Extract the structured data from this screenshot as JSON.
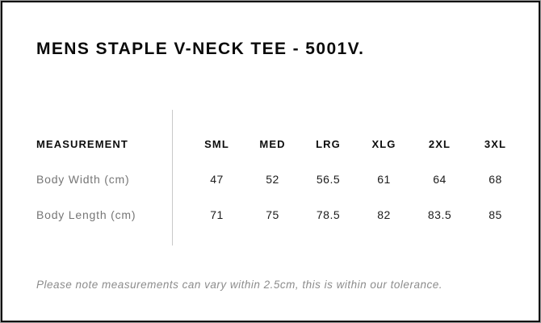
{
  "page": {
    "title": "MENS STAPLE V-NECK TEE - 5001V.",
    "note": "Please note measurements can vary within 2.5cm, this is within our tolerance."
  },
  "size_chart": {
    "header_label": "MEASUREMENT",
    "columns": [
      "SML",
      "MED",
      "LRG",
      "XLG",
      "2XL",
      "3XL"
    ],
    "rows": [
      {
        "label": "Body Width (cm)",
        "values": [
          "47",
          "52",
          "56.5",
          "61",
          "64",
          "68"
        ]
      },
      {
        "label": "Body Length (cm)",
        "values": [
          "71",
          "75",
          "78.5",
          "82",
          "83.5",
          "85"
        ]
      }
    ]
  },
  "colors": {
    "page_border": "#0a0a0a",
    "outer_edge": "#9b9b9b",
    "divider": "#c9c9c9",
    "title_text": "#0a0a0a",
    "header_text": "#0d0d0d",
    "row_label_text": "#767676",
    "value_text": "#1c1c1c",
    "note_text": "#8c8c8c"
  }
}
